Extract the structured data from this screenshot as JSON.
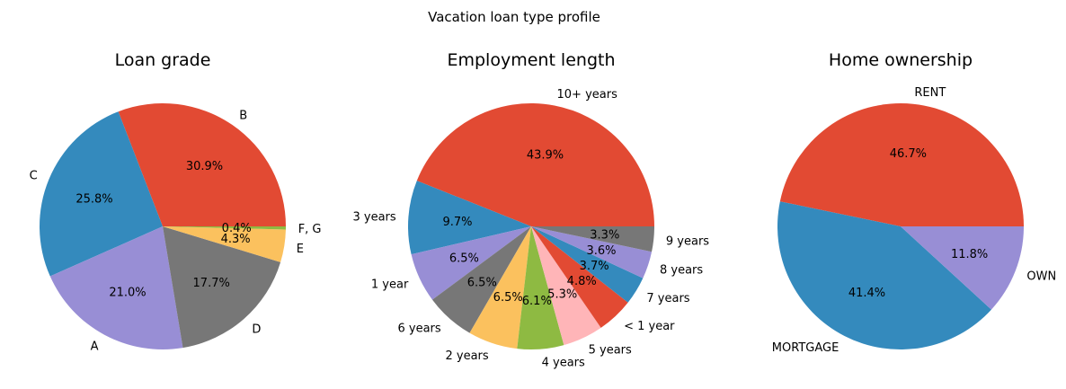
{
  "suptitle": "Vacation loan type profile",
  "chart_data": [
    {
      "type": "pie",
      "title": "Loan grade",
      "slices": [
        {
          "label": "B",
          "value": 30.9,
          "pct_label": "30.9%",
          "color": "#E24A33"
        },
        {
          "label": "C",
          "value": 25.8,
          "pct_label": "25.8%",
          "color": "#348ABD"
        },
        {
          "label": "A",
          "value": 21.0,
          "pct_label": "21.0%",
          "color": "#988ED5"
        },
        {
          "label": "D",
          "value": 17.7,
          "pct_label": "17.7%",
          "color": "#777777"
        },
        {
          "label": "E",
          "value": 4.3,
          "pct_label": "4.3%",
          "color": "#FBC15E"
        },
        {
          "label": "F, G",
          "value": 0.4,
          "pct_label": "0.4%",
          "color": "#8EBA42"
        }
      ]
    },
    {
      "type": "pie",
      "title": "Employment length",
      "slices": [
        {
          "label": "10+ years",
          "value": 43.9,
          "pct_label": "43.9%",
          "color": "#E24A33"
        },
        {
          "label": "3 years",
          "value": 9.7,
          "pct_label": "9.7%",
          "color": "#348ABD"
        },
        {
          "label": "1 year",
          "value": 6.5,
          "pct_label": "6.5%",
          "color": "#988ED5"
        },
        {
          "label": "6 years",
          "value": 6.5,
          "pct_label": "6.5%",
          "color": "#777777"
        },
        {
          "label": "2 years",
          "value": 6.5,
          "pct_label": "6.5%",
          "color": "#FBC15E"
        },
        {
          "label": "4 years",
          "value": 6.1,
          "pct_label": "6.1%",
          "color": "#8EBA42"
        },
        {
          "label": "5 years",
          "value": 5.3,
          "pct_label": "5.3%",
          "color": "#FFB5B8"
        },
        {
          "label": "< 1 year",
          "value": 4.8,
          "pct_label": "4.8%",
          "color": "#E24A33"
        },
        {
          "label": "7 years",
          "value": 3.7,
          "pct_label": "3.7%",
          "color": "#348ABD"
        },
        {
          "label": "8 years",
          "value": 3.6,
          "pct_label": "3.6%",
          "color": "#988ED5"
        },
        {
          "label": "9 years",
          "value": 3.3,
          "pct_label": "3.3%",
          "color": "#777777"
        }
      ]
    },
    {
      "type": "pie",
      "title": "Home ownership",
      "slices": [
        {
          "label": "RENT",
          "value": 46.7,
          "pct_label": "46.7%",
          "color": "#E24A33"
        },
        {
          "label": "MORTGAGE",
          "value": 41.4,
          "pct_label": "41.4%",
          "color": "#348ABD"
        },
        {
          "label": "OWN",
          "value": 11.8,
          "pct_label": "11.8%",
          "color": "#988ED5"
        }
      ]
    }
  ]
}
